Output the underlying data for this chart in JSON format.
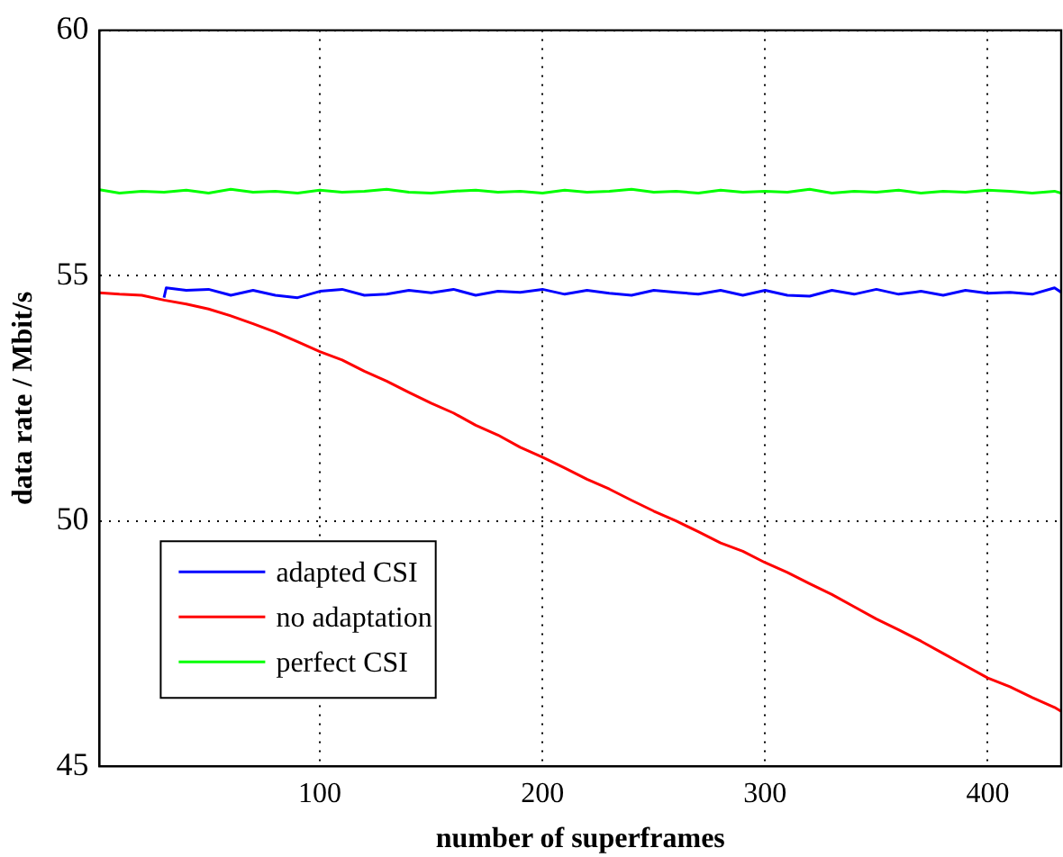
{
  "chart_data": {
    "type": "line",
    "xlabel": "number of superframes",
    "ylabel": "data rate / Mbit/s",
    "xlim": [
      1,
      433
    ],
    "ylim": [
      45,
      60
    ],
    "xticks": [
      100,
      200,
      300,
      400
    ],
    "yticks": [
      45,
      50,
      55,
      60
    ],
    "grid": true,
    "legend": "bottom left",
    "marker": "none",
    "line_style": "solid",
    "series": [
      {
        "name": "adapted CSI",
        "color": "#0000ff",
        "x": [
          30,
          31,
          40,
          50,
          60,
          70,
          80,
          90,
          100,
          110,
          120,
          130,
          140,
          150,
          160,
          170,
          180,
          190,
          200,
          210,
          220,
          230,
          240,
          250,
          260,
          270,
          280,
          290,
          300,
          310,
          320,
          330,
          340,
          350,
          360,
          370,
          380,
          390,
          400,
          410,
          420,
          430,
          433
        ],
        "values": [
          54.55,
          54.75,
          54.7,
          54.72,
          54.6,
          54.7,
          54.6,
          54.55,
          54.68,
          54.72,
          54.6,
          54.62,
          54.7,
          54.65,
          54.72,
          54.6,
          54.68,
          54.66,
          54.72,
          54.62,
          54.7,
          54.64,
          54.6,
          54.7,
          54.66,
          54.62,
          54.7,
          54.6,
          54.7,
          54.6,
          54.58,
          54.7,
          54.62,
          54.72,
          54.62,
          54.68,
          54.6,
          54.7,
          54.64,
          54.66,
          54.62,
          54.75,
          54.66
        ]
      },
      {
        "name": "no adaptation",
        "color": "#ff0000",
        "x": [
          1,
          10,
          20,
          30,
          40,
          50,
          60,
          70,
          80,
          90,
          100,
          110,
          120,
          130,
          140,
          150,
          160,
          170,
          180,
          190,
          200,
          210,
          220,
          230,
          240,
          250,
          260,
          270,
          280,
          290,
          300,
          310,
          320,
          330,
          340,
          350,
          360,
          370,
          380,
          390,
          400,
          410,
          420,
          430,
          433
        ],
        "values": [
          54.65,
          54.62,
          54.6,
          54.5,
          54.42,
          54.32,
          54.18,
          54.02,
          53.85,
          53.65,
          53.45,
          53.28,
          53.05,
          52.85,
          52.62,
          52.4,
          52.2,
          51.95,
          51.75,
          51.5,
          51.3,
          51.08,
          50.85,
          50.65,
          50.42,
          50.2,
          50.0,
          49.78,
          49.55,
          49.38,
          49.15,
          48.95,
          48.72,
          48.5,
          48.25,
          48.0,
          47.78,
          47.55,
          47.3,
          47.05,
          46.8,
          46.62,
          46.4,
          46.2,
          46.12
        ]
      },
      {
        "name": "perfect CSI",
        "color": "#00ff00",
        "x": [
          1,
          10,
          20,
          30,
          40,
          50,
          60,
          70,
          80,
          90,
          100,
          110,
          120,
          130,
          140,
          150,
          160,
          170,
          180,
          190,
          200,
          210,
          220,
          230,
          240,
          250,
          260,
          270,
          280,
          290,
          300,
          310,
          320,
          330,
          340,
          350,
          360,
          370,
          380,
          390,
          400,
          410,
          420,
          430,
          433
        ],
        "values": [
          56.75,
          56.68,
          56.72,
          56.7,
          56.74,
          56.68,
          56.76,
          56.7,
          56.72,
          56.68,
          56.74,
          56.7,
          56.72,
          56.76,
          56.7,
          56.68,
          56.72,
          56.74,
          56.7,
          56.72,
          56.68,
          56.74,
          56.7,
          56.72,
          56.76,
          56.7,
          56.72,
          56.68,
          56.74,
          56.7,
          56.72,
          56.7,
          56.76,
          56.68,
          56.72,
          56.7,
          56.74,
          56.68,
          56.72,
          56.7,
          56.74,
          56.72,
          56.68,
          56.72,
          56.68
        ]
      }
    ]
  }
}
